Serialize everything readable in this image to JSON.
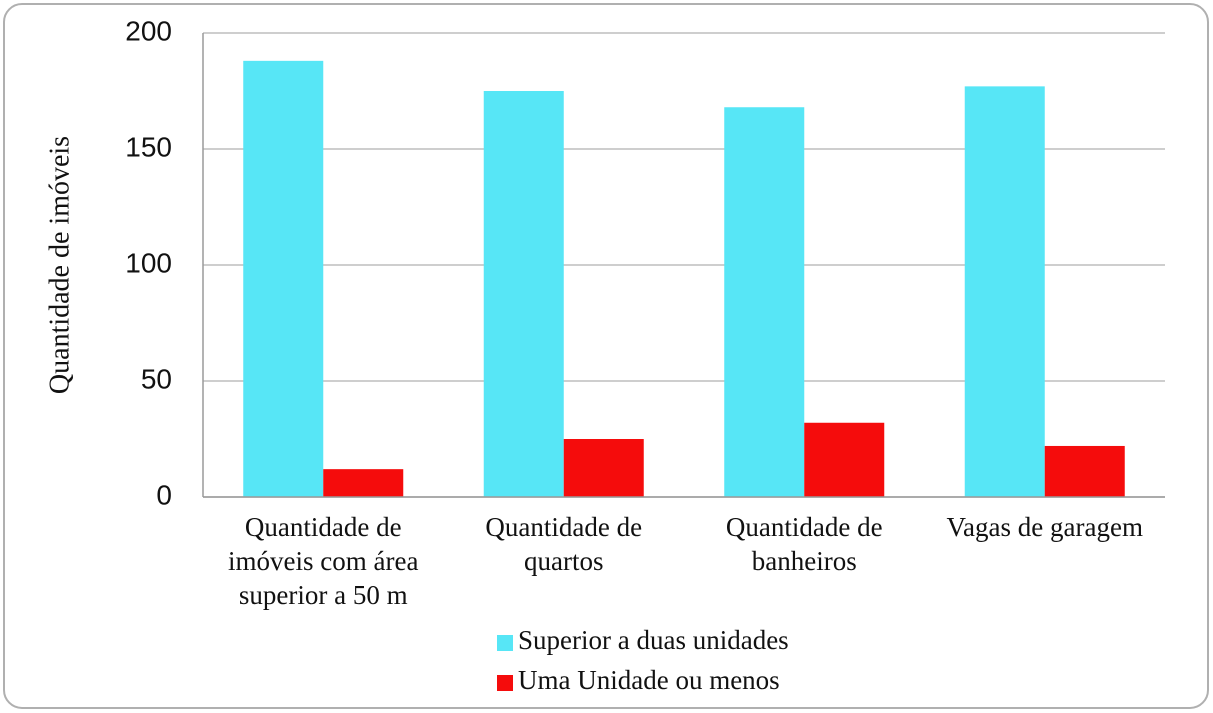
{
  "chart_data": {
    "type": "bar",
    "y_label": "Quantidade de imóveis",
    "categories": [
      "Quantidade de imóveis com área superior a 50 m",
      "Quantidade de quartos",
      "Quantidade de banheiros",
      "Vagas de garagem"
    ],
    "series": [
      {
        "name": "Superior a duas unidades",
        "color": "#57e6f6",
        "values": [
          188,
          175,
          168,
          177
        ]
      },
      {
        "name": "Uma Unidade ou menos",
        "color": "#f50c0c",
        "values": [
          12,
          25,
          32,
          22
        ]
      }
    ],
    "ylim": [
      0,
      200
    ],
    "yticks": [
      0,
      50,
      100,
      150,
      200
    ],
    "grid": true,
    "legend": "bottom"
  }
}
